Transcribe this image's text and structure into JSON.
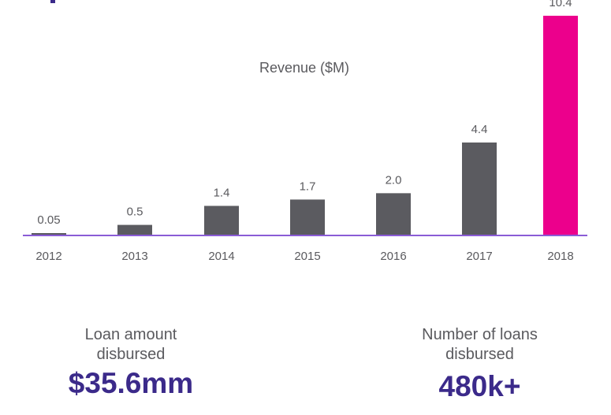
{
  "chart_data": {
    "type": "bar",
    "title": "Revenue ($M)",
    "xlabel": "",
    "ylabel": "",
    "ylim": [
      0,
      10.4
    ],
    "grid": false,
    "categories": [
      "2012",
      "2013",
      "2014",
      "2015",
      "2016",
      "2017",
      "2018"
    ],
    "values": [
      0.05,
      0.5,
      1.4,
      1.7,
      2.0,
      4.4,
      10.4
    ],
    "data_labels": [
      "0.05",
      "0.5",
      "1.4",
      "1.7",
      "2.0",
      "4.4",
      "10.4"
    ],
    "colors": {
      "default_bar": "#5b5b60",
      "highlight_bar": "#ec008c",
      "highlight_category": "2018",
      "axis_line": "#8a5cd6",
      "label_text": "#5a5a5e"
    }
  },
  "stats": [
    {
      "label_line1": "Loan amount",
      "label_line2": "disbursed",
      "value": "$35.6mm"
    },
    {
      "label_line1": "Number of loans",
      "label_line2": "disbursed",
      "value": "480k+"
    }
  ],
  "colors": {
    "accent": "#3b2a8a"
  }
}
